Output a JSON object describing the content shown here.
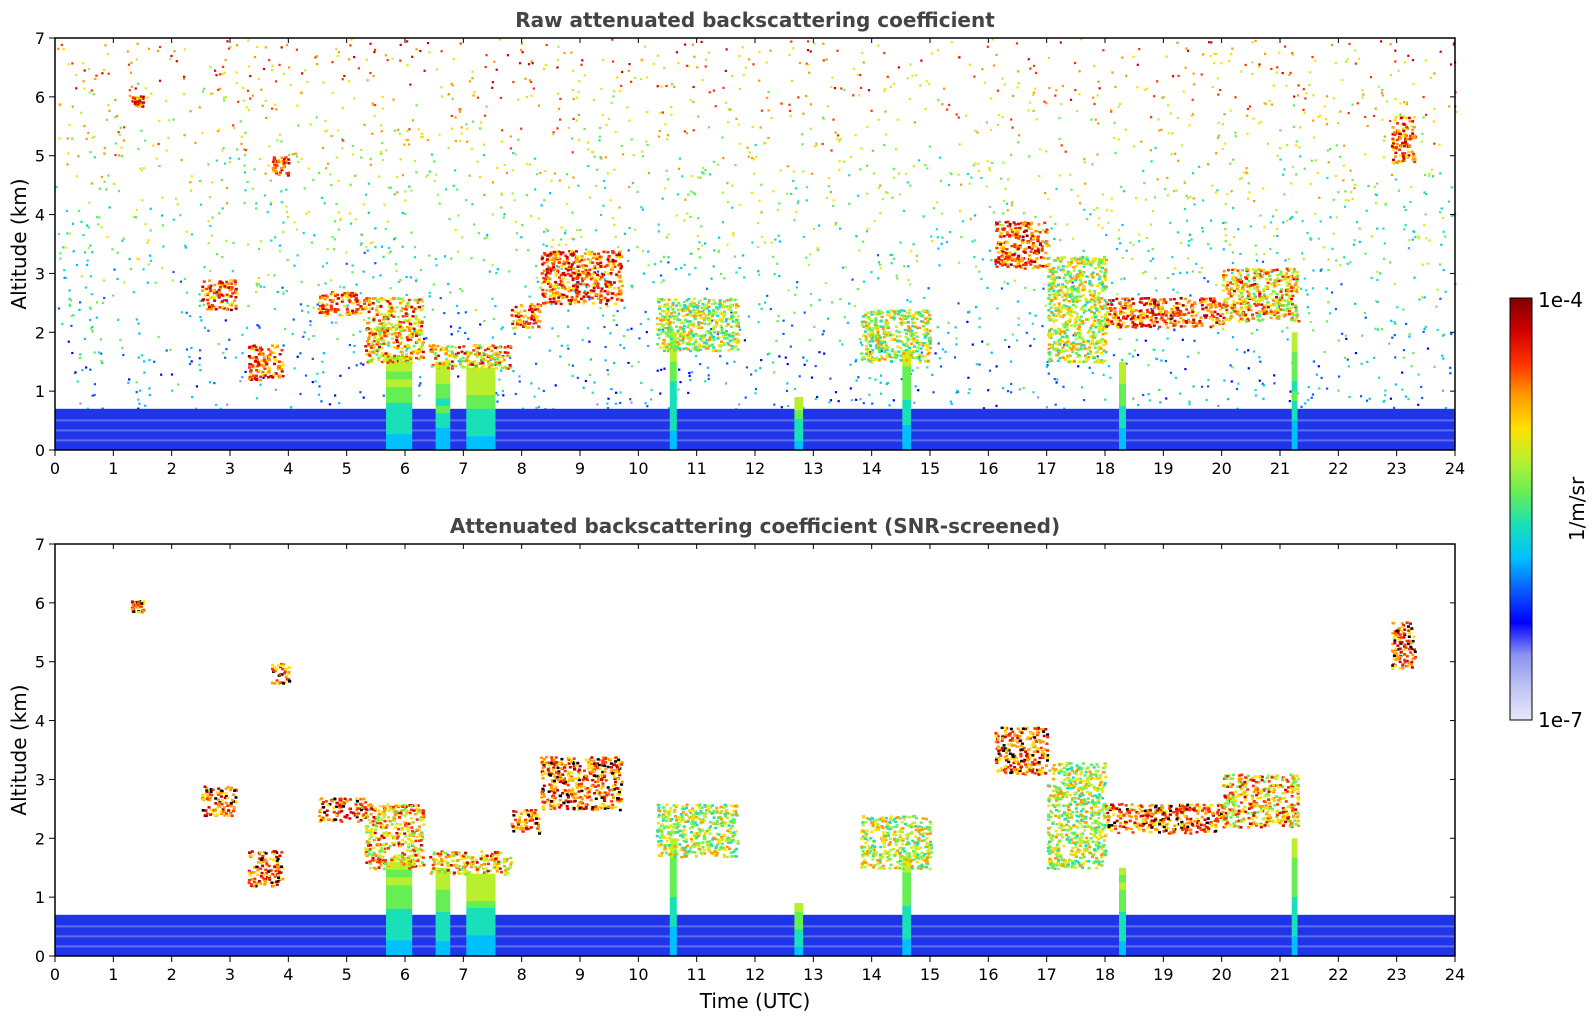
{
  "chart_data": [
    {
      "type": "heatmap",
      "title": "Raw attenuated backscattering coefficient",
      "xlabel": "",
      "ylabel": "Altitude (km)",
      "xlim": [
        0,
        24
      ],
      "ylim": [
        0,
        7
      ],
      "x_ticks": [
        0,
        1,
        2,
        3,
        4,
        5,
        6,
        7,
        8,
        9,
        10,
        11,
        12,
        13,
        14,
        15,
        16,
        17,
        18,
        19,
        20,
        21,
        22,
        23,
        24
      ],
      "y_ticks": [
        0,
        1,
        2,
        3,
        4,
        5,
        6,
        7
      ],
      "features": {
        "boundary_layer": [
          {
            "t0": 0,
            "t1": 24,
            "top_km": 0.7,
            "base_color": "#1f35ea"
          }
        ],
        "clouds": [
          {
            "t": [
              1.3,
              1.5
            ],
            "z": [
              5.85,
              6.05
            ],
            "kind": "thin"
          },
          {
            "t": [
              3.7,
              4.0
            ],
            "z": [
              4.65,
              5.0
            ],
            "kind": "thin"
          },
          {
            "t": [
              2.5,
              3.1
            ],
            "z": [
              2.4,
              2.9
            ],
            "kind": "thin"
          },
          {
            "t": [
              3.3,
              3.9
            ],
            "z": [
              1.2,
              1.8
            ],
            "kind": "thin"
          },
          {
            "t": [
              4.5,
              5.3
            ],
            "z": [
              2.3,
              2.7
            ],
            "kind": "layer"
          },
          {
            "t": [
              5.3,
              6.3
            ],
            "z": [
              1.5,
              2.6
            ],
            "kind": "thick"
          },
          {
            "t": [
              6.4,
              7.8
            ],
            "z": [
              1.4,
              1.8
            ],
            "kind": "thick"
          },
          {
            "t": [
              7.8,
              8.3
            ],
            "z": [
              2.1,
              2.5
            ],
            "kind": "layer"
          },
          {
            "t": [
              8.3,
              9.7
            ],
            "z": [
              2.5,
              3.4
            ],
            "kind": "arc"
          },
          {
            "t": [
              10.3,
              11.7
            ],
            "z": [
              1.7,
              2.6
            ],
            "kind": "diffuse"
          },
          {
            "t": [
              13.8,
              15.0
            ],
            "z": [
              1.5,
              2.4
            ],
            "kind": "diffuse"
          },
          {
            "t": [
              16.1,
              17.0
            ],
            "z": [
              3.1,
              3.9
            ],
            "kind": "thin"
          },
          {
            "t": [
              17.0,
              18.0
            ],
            "z": [
              1.5,
              3.3
            ],
            "kind": "diffuse"
          },
          {
            "t": [
              18.0,
              20.0
            ],
            "z": [
              2.1,
              2.6
            ],
            "kind": "layer"
          },
          {
            "t": [
              20.0,
              21.3
            ],
            "z": [
              2.2,
              3.1
            ],
            "kind": "thick"
          },
          {
            "t": [
              22.9,
              23.3
            ],
            "z": [
              4.9,
              5.7
            ],
            "kind": "thin"
          }
        ],
        "fall_streaks": [
          {
            "t": 5.9,
            "w": 0.45,
            "top": 1.6
          },
          {
            "t": 6.65,
            "w": 0.25,
            "top": 1.5
          },
          {
            "t": 7.3,
            "w": 0.5,
            "top": 1.4
          },
          {
            "t": 10.6,
            "w": 0.12,
            "top": 2.0
          },
          {
            "t": 12.75,
            "w": 0.15,
            "top": 0.9
          },
          {
            "t": 14.6,
            "w": 0.15,
            "top": 1.7
          },
          {
            "t": 18.3,
            "w": 0.12,
            "top": 1.5
          },
          {
            "t": 21.25,
            "w": 0.1,
            "top": 2.0
          }
        ]
      }
    },
    {
      "type": "heatmap",
      "title": "Attenuated backscattering coefficient (SNR-screened)",
      "xlabel": "Time (UTC)",
      "ylabel": "Altitude (km)",
      "xlim": [
        0,
        24
      ],
      "ylim": [
        0,
        7
      ],
      "x_ticks": [
        0,
        1,
        2,
        3,
        4,
        5,
        6,
        7,
        8,
        9,
        10,
        11,
        12,
        13,
        14,
        15,
        16,
        17,
        18,
        19,
        20,
        21,
        22,
        23,
        24
      ],
      "y_ticks": [
        0,
        1,
        2,
        3,
        4,
        5,
        6,
        7
      ],
      "screened": true
    }
  ],
  "colorbar": {
    "label": "1/m/sr",
    "max_label": "1e-4",
    "min_label": "1e-7",
    "scale": "log",
    "range": [
      1e-07,
      0.0001
    ],
    "colormap": [
      "#e8e8f8",
      "#bfc3f3",
      "#8c93f0",
      "#0000ff",
      "#0a5cff",
      "#00c0ff",
      "#19e0b8",
      "#66ee55",
      "#b8f030",
      "#ffe000",
      "#ff9a00",
      "#ff3000",
      "#d00000",
      "#800000"
    ]
  }
}
